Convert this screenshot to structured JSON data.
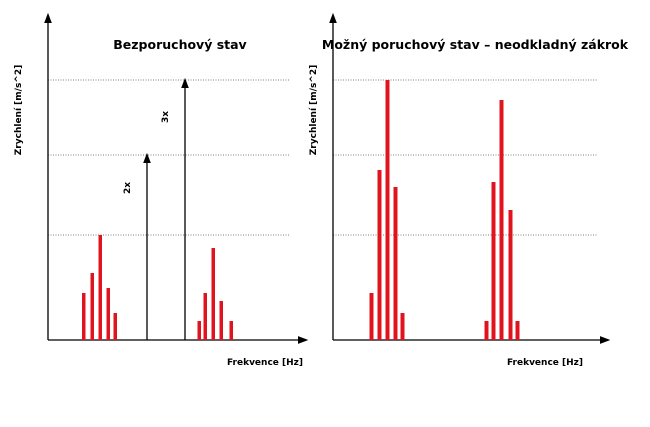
{
  "panels": [
    {
      "title": "Bezporuchový stav",
      "y_label": "Zrychlení [m/s^2]",
      "x_label": "Frekvence [Hz]",
      "annotations": [
        "2x",
        "3x"
      ]
    },
    {
      "title": "Možný poruchový stav – neodkladný zákrok",
      "y_label": "Zrychlení [m/s^2]",
      "x_label": "Frekvence [Hz]"
    }
  ]
}
